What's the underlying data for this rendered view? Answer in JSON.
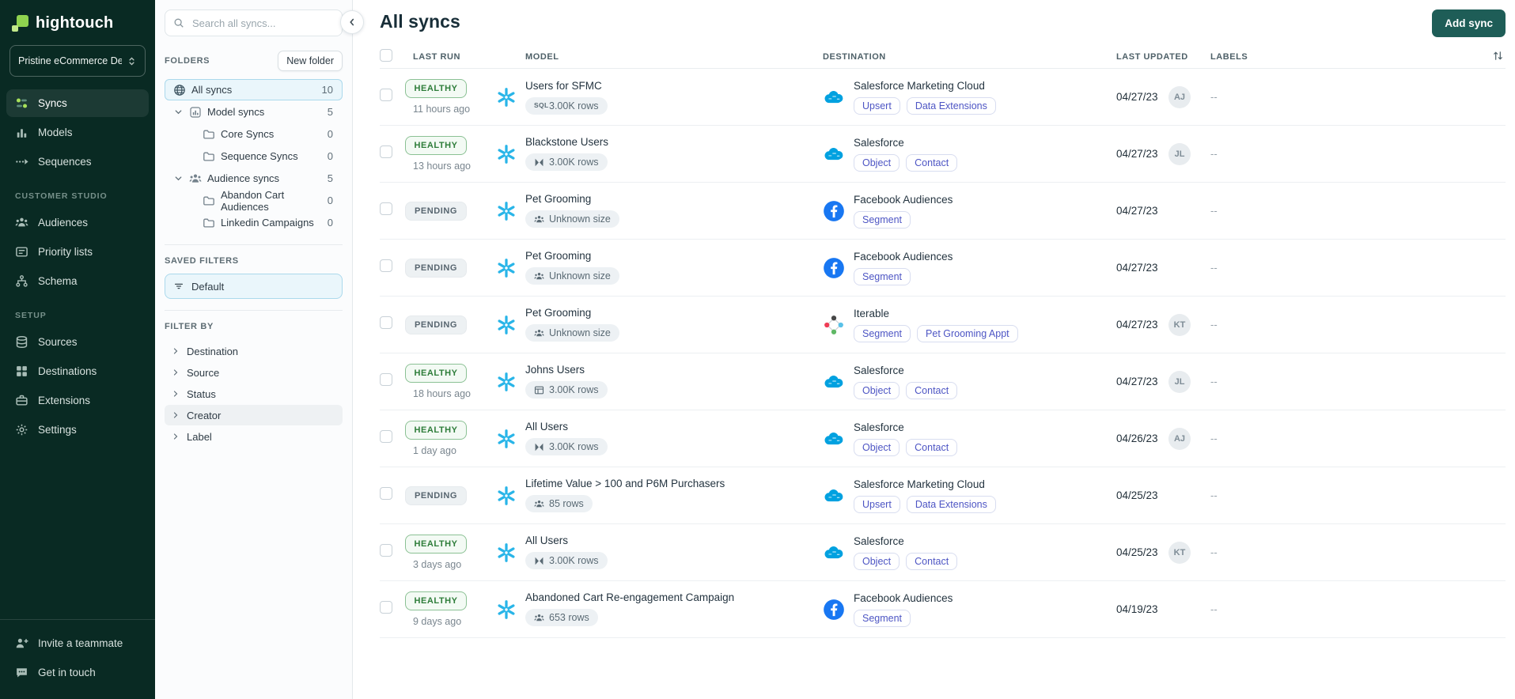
{
  "sidebar": {
    "logo_text": "hightouch",
    "workspace": "Pristine eCommerce De...",
    "nav": [
      {
        "label": "Syncs",
        "icon": "syncs-icon",
        "active": true
      },
      {
        "label": "Models",
        "icon": "models-icon"
      },
      {
        "label": "Sequences",
        "icon": "sequences-icon"
      }
    ],
    "sections": [
      {
        "title": "CUSTOMER STUDIO",
        "items": [
          {
            "label": "Audiences",
            "icon": "audiences-icon"
          },
          {
            "label": "Priority lists",
            "icon": "priority-lists-icon"
          },
          {
            "label": "Schema",
            "icon": "schema-icon"
          }
        ]
      },
      {
        "title": "SETUP",
        "items": [
          {
            "label": "Sources",
            "icon": "sources-icon"
          },
          {
            "label": "Destinations",
            "icon": "destinations-icon"
          },
          {
            "label": "Extensions",
            "icon": "extensions-icon"
          },
          {
            "label": "Settings",
            "icon": "settings-icon"
          }
        ]
      }
    ],
    "footer": [
      {
        "label": "Invite a teammate",
        "icon": "invite-icon"
      },
      {
        "label": "Get in touch",
        "icon": "chat-icon"
      }
    ]
  },
  "folders_panel": {
    "search_placeholder": "Search all syncs...",
    "folders_title": "FOLDERS",
    "new_folder_label": "New folder",
    "tree": [
      {
        "label": "All syncs",
        "count": "10",
        "icon": "globe-icon",
        "level": 0,
        "selected": true
      },
      {
        "label": "Model syncs",
        "count": "5",
        "icon": "model-folder-icon",
        "level": 1,
        "chevron": true
      },
      {
        "label": "Core Syncs",
        "count": "0",
        "icon": "folder-icon",
        "level": 2
      },
      {
        "label": "Sequence Syncs",
        "count": "0",
        "icon": "folder-icon",
        "level": 2
      },
      {
        "label": "Audience syncs",
        "count": "5",
        "icon": "audiences-icon",
        "level": 1,
        "chevron": true
      },
      {
        "label": "Abandon Cart Audiences",
        "count": "0",
        "icon": "folder-icon",
        "level": 2
      },
      {
        "label": "Linkedin Campaigns",
        "count": "0",
        "icon": "folder-icon",
        "level": 2
      }
    ],
    "saved_filters_title": "SAVED FILTERS",
    "saved_filters": [
      {
        "label": "Default",
        "icon": "filter-icon",
        "selected": true
      }
    ],
    "filter_by_title": "FILTER BY",
    "filters": [
      {
        "label": "Destination"
      },
      {
        "label": "Source"
      },
      {
        "label": "Status"
      },
      {
        "label": "Creator",
        "highlighted": true
      },
      {
        "label": "Label"
      }
    ]
  },
  "main": {
    "title": "All syncs",
    "add_sync_label": "Add sync",
    "table": {
      "columns": [
        "LAST RUN",
        "MODEL",
        "DESTINATION",
        "LAST UPDATED",
        "LABELS"
      ],
      "sort_icon": "sort-icon",
      "rows": [
        {
          "status": "HEALTHY",
          "status_variant": "healthy",
          "last_run": "11 hours ago",
          "model": {
            "name": "Users for SFMC",
            "icon": "snowflake-icon",
            "size_label": "3.00K rows",
            "size_icon": "sql-icon"
          },
          "destination": {
            "name": "Salesforce Marketing Cloud",
            "icon": "salesforce-icon",
            "tags": [
              "Upsert",
              "Data Extensions"
            ]
          },
          "last_updated": "04/27/23",
          "avatar": "AJ",
          "labels": "--"
        },
        {
          "status": "HEALTHY",
          "status_variant": "healthy",
          "last_run": "13 hours ago",
          "model": {
            "name": "Blackstone Users",
            "icon": "snowflake-icon",
            "size_label": "3.00K rows",
            "size_icon": "join-icon"
          },
          "destination": {
            "name": "Salesforce",
            "icon": "salesforce-icon",
            "tags": [
              "Object",
              "Contact"
            ]
          },
          "last_updated": "04/27/23",
          "avatar": "JL",
          "labels": "--"
        },
        {
          "status": "PENDING",
          "status_variant": "pending",
          "last_run": "",
          "model": {
            "name": "Pet Grooming",
            "icon": "snowflake-icon",
            "size_label": "Unknown size",
            "size_icon": "audience-icon"
          },
          "destination": {
            "name": "Facebook Audiences",
            "icon": "facebook-icon",
            "tags": [
              "Segment"
            ]
          },
          "last_updated": "04/27/23",
          "avatar": "",
          "labels": "--"
        },
        {
          "status": "PENDING",
          "status_variant": "pending",
          "last_run": "",
          "model": {
            "name": "Pet Grooming",
            "icon": "snowflake-icon",
            "size_label": "Unknown size",
            "size_icon": "audience-icon"
          },
          "destination": {
            "name": "Facebook Audiences",
            "icon": "facebook-icon",
            "tags": [
              "Segment"
            ]
          },
          "last_updated": "04/27/23",
          "avatar": "",
          "labels": "--"
        },
        {
          "status": "PENDING",
          "status_variant": "pending",
          "last_run": "",
          "model": {
            "name": "Pet Grooming",
            "icon": "snowflake-icon",
            "size_label": "Unknown size",
            "size_icon": "audience-icon"
          },
          "destination": {
            "name": "Iterable",
            "icon": "iterable-icon",
            "tags": [
              "Segment",
              "Pet Grooming Appt"
            ]
          },
          "last_updated": "04/27/23",
          "avatar": "KT",
          "labels": "--"
        },
        {
          "status": "HEALTHY",
          "status_variant": "healthy",
          "last_run": "18 hours ago",
          "model": {
            "name": "Johns Users",
            "icon": "snowflake-icon",
            "size_label": "3.00K rows",
            "size_icon": "table-icon"
          },
          "destination": {
            "name": "Salesforce",
            "icon": "salesforce-icon",
            "tags": [
              "Object",
              "Contact"
            ]
          },
          "last_updated": "04/27/23",
          "avatar": "JL",
          "labels": "--"
        },
        {
          "status": "HEALTHY",
          "status_variant": "healthy",
          "last_run": "1 day ago",
          "model": {
            "name": "All Users",
            "icon": "snowflake-icon",
            "size_label": "3.00K rows",
            "size_icon": "join-icon"
          },
          "destination": {
            "name": "Salesforce",
            "icon": "salesforce-icon",
            "tags": [
              "Object",
              "Contact"
            ]
          },
          "last_updated": "04/26/23",
          "avatar": "AJ",
          "labels": "--"
        },
        {
          "status": "PENDING",
          "status_variant": "pending",
          "last_run": "",
          "model": {
            "name": "Lifetime Value > 100 and P6M Purchasers",
            "icon": "snowflake-icon",
            "size_label": "85 rows",
            "size_icon": "audience-icon"
          },
          "destination": {
            "name": "Salesforce Marketing Cloud",
            "icon": "salesforce-icon",
            "tags": [
              "Upsert",
              "Data Extensions"
            ]
          },
          "last_updated": "04/25/23",
          "avatar": "",
          "labels": "--"
        },
        {
          "status": "HEALTHY",
          "status_variant": "healthy",
          "last_run": "3 days ago",
          "model": {
            "name": "All Users",
            "icon": "snowflake-icon",
            "size_label": "3.00K rows",
            "size_icon": "join-icon"
          },
          "destination": {
            "name": "Salesforce",
            "icon": "salesforce-icon",
            "tags": [
              "Object",
              "Contact"
            ]
          },
          "last_updated": "04/25/23",
          "avatar": "KT",
          "labels": "--"
        },
        {
          "status": "HEALTHY",
          "status_variant": "healthy",
          "last_run": "9 days ago",
          "model": {
            "name": "Abandoned Cart Re-engagement Campaign",
            "icon": "snowflake-icon",
            "size_label": "653 rows",
            "size_icon": "audience-icon"
          },
          "destination": {
            "name": "Facebook Audiences",
            "icon": "facebook-icon",
            "tags": [
              "Segment"
            ]
          },
          "last_updated": "04/19/23",
          "avatar": "",
          "labels": "--"
        }
      ]
    }
  },
  "colors": {
    "sidebar_bg": "#092A23",
    "brand_green": "#8FD34F",
    "accent_teal": "#1E5D57",
    "selected_bg": "#EAF6FB",
    "selected_border": "#ABD9EC",
    "healthy_green": "#2E7D3A",
    "pending_gray": "#57656F",
    "snowflake_blue": "#29B5E8",
    "salesforce_blue": "#00A1E0",
    "facebook_blue": "#1877F2",
    "tag_indigo": "#4D55C4"
  }
}
